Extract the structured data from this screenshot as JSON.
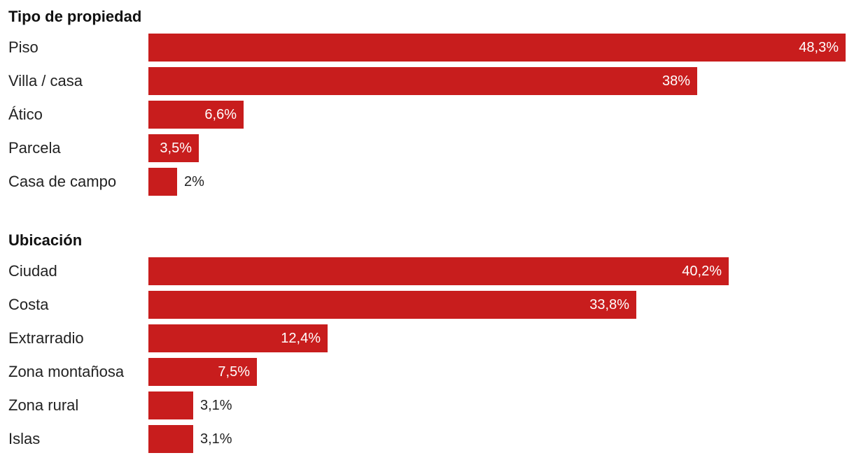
{
  "colors": {
    "bar": "#c81d1d",
    "text": "#222222",
    "inside_label": "#ffffff"
  },
  "chart_data": [
    {
      "type": "bar",
      "orientation": "horizontal",
      "title": "Tipo de propiedad",
      "xlabel": "",
      "ylabel": "",
      "xlim": [
        0,
        48.3
      ],
      "grid": false,
      "categories": [
        "Piso",
        "Villa / casa",
        "Ático",
        "Parcela",
        "Casa de campo"
      ],
      "values": [
        48.3,
        38,
        6.6,
        3.5,
        2
      ],
      "value_labels": [
        "48,3%",
        "38%",
        "6,6%",
        "3,5%",
        "2%"
      ]
    },
    {
      "type": "bar",
      "orientation": "horizontal",
      "title": "Ubicación",
      "xlabel": "",
      "ylabel": "",
      "xlim": [
        0,
        48.3
      ],
      "grid": false,
      "categories": [
        "Ciudad",
        "Costa",
        "Extrarradio",
        "Zona montañosa",
        "Zona rural",
        "Islas"
      ],
      "values": [
        40.2,
        33.8,
        12.4,
        7.5,
        3.1,
        3.1
      ],
      "value_labels": [
        "40,2%",
        "33,8%",
        "12,4%",
        "7,5%",
        "3,1%",
        "3,1%"
      ]
    }
  ]
}
